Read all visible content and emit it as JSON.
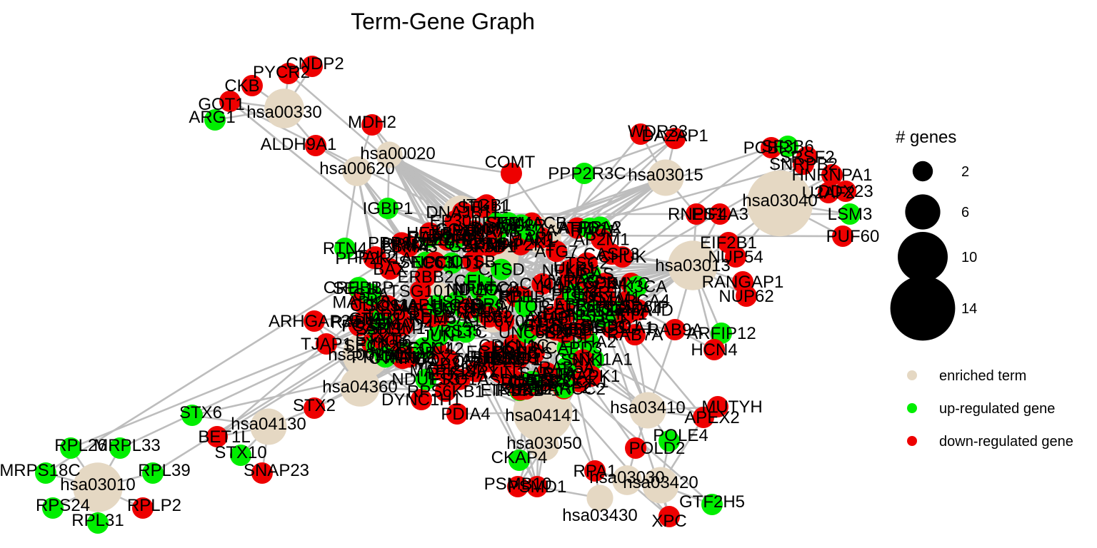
{
  "title": "Term-Gene Graph",
  "colors": {
    "term": "#E5D8C3",
    "up": "#00EE00",
    "down": "#EE0000",
    "edge": "#BDBDBD"
  },
  "legend": {
    "size_title": "# genes",
    "size_values": [
      "2",
      "6",
      "10",
      "14"
    ],
    "categories": [
      {
        "label": "enriched term",
        "type": "term"
      },
      {
        "label": "up-regulated gene",
        "type": "up"
      },
      {
        "label": "down-regulated gene",
        "type": "down"
      }
    ]
  },
  "nodes": [
    {
      "id": "hsa00330",
      "label": "hsa00330",
      "type": "term",
      "genes": 6
    },
    {
      "id": "CNDP2",
      "label": "CNDP2",
      "type": "down"
    },
    {
      "id": "PYCR2",
      "label": "PYCR2",
      "type": "down"
    },
    {
      "id": "CKB",
      "label": "CKB",
      "type": "down"
    },
    {
      "id": "GOT1",
      "label": "GOT1",
      "type": "down"
    },
    {
      "id": "ARG1",
      "label": "ARG1",
      "type": "up"
    },
    {
      "id": "ALDH9A1",
      "label": "ALDH9A1",
      "type": "down"
    },
    {
      "id": "MDH2",
      "label": "MDH2",
      "type": "down"
    },
    {
      "id": "hsa00020",
      "label": "hsa00020",
      "type": "term",
      "genes": 2
    },
    {
      "id": "hsa00620",
      "label": "hsa00620",
      "type": "term",
      "genes": 3
    },
    {
      "id": "COMT",
      "label": "COMT",
      "type": "down"
    },
    {
      "id": "PPP2R3C",
      "label": "PPP2R3C",
      "type": "up"
    },
    {
      "id": "hsa03015",
      "label": "hsa03015",
      "type": "term",
      "genes": 5
    },
    {
      "id": "WDR33",
      "label": "WDR33",
      "type": "down"
    },
    {
      "id": "DAZAP1",
      "label": "DAZAP1",
      "type": "down"
    },
    {
      "id": "RNPS1",
      "label": "RNPS1",
      "type": "down"
    },
    {
      "id": "EIF4A3",
      "label": "EIF4A3",
      "type": "down"
    },
    {
      "id": "hsa03040",
      "label": "hsa03040",
      "type": "term",
      "genes": 14
    },
    {
      "id": "PCBP1",
      "label": "PCBP1",
      "type": "down"
    },
    {
      "id": "SF3B6",
      "label": "SF3B6",
      "type": "up"
    },
    {
      "id": "SRSF2",
      "label": "SRSF2",
      "type": "down"
    },
    {
      "id": "HNRNPA1",
      "label": "HNRNPA1",
      "type": "down"
    },
    {
      "id": "U2AF2",
      "label": "U2AF2",
      "type": "down"
    },
    {
      "id": "SNRPB2",
      "label": "SNRPB2",
      "type": "down"
    },
    {
      "id": "DDX23",
      "label": "DDX23",
      "type": "down"
    },
    {
      "id": "PUF60",
      "label": "PUF60",
      "type": "down"
    },
    {
      "id": "LSM3",
      "label": "LSM3",
      "type": "up"
    },
    {
      "id": "hsa03013",
      "label": "hsa03013",
      "type": "term",
      "genes": 9
    },
    {
      "id": "EIF2B1",
      "label": "EIF2B1",
      "type": "down"
    },
    {
      "id": "NUP54",
      "label": "NUP54",
      "type": "down"
    },
    {
      "id": "RANGAP1",
      "label": "RANGAP1",
      "type": "down"
    },
    {
      "id": "NUP62",
      "label": "NUP62",
      "type": "down"
    },
    {
      "id": "hsa04141",
      "label": "hsa04141",
      "type": "term",
      "genes": 12
    },
    {
      "id": "PDIA4",
      "label": "PDIA4",
      "type": "down"
    },
    {
      "id": "DYNC1H1",
      "label": "DYNC1H1",
      "type": "down"
    },
    {
      "id": "hsa03050",
      "label": "hsa03050",
      "type": "term",
      "genes": 3
    },
    {
      "id": "PSMB10",
      "label": "PSMB10",
      "type": "down"
    },
    {
      "id": "PSMD1",
      "label": "PSMD1",
      "type": "down"
    },
    {
      "id": "CKAP4",
      "label": "CKAP4",
      "type": "up"
    },
    {
      "id": "hsa03410",
      "label": "hsa03410",
      "type": "term",
      "genes": 5
    },
    {
      "id": "MUTYH",
      "label": "MUTYH",
      "type": "down"
    },
    {
      "id": "APEX2",
      "label": "APEX2",
      "type": "down"
    },
    {
      "id": "POLE4",
      "label": "POLE4",
      "type": "up"
    },
    {
      "id": "POLD2",
      "label": "POLD2",
      "type": "down"
    },
    {
      "id": "hsa03420",
      "label": "hsa03420",
      "type": "term",
      "genes": 5
    },
    {
      "id": "hsa03030",
      "label": "hsa03030",
      "type": "term",
      "genes": 3
    },
    {
      "id": "hsa03430",
      "label": "hsa03430",
      "type": "term",
      "genes": 2
    },
    {
      "id": "RPA1",
      "label": "RPA1",
      "type": "down"
    },
    {
      "id": "GTF2H5",
      "label": "GTF2H5",
      "type": "up"
    },
    {
      "id": "XPC",
      "label": "XPC",
      "type": "down"
    },
    {
      "id": "hsa04130",
      "label": "hsa04130",
      "type": "term",
      "genes": 5
    },
    {
      "id": "STX6",
      "label": "STX6",
      "type": "up"
    },
    {
      "id": "BET1L",
      "label": "BET1L",
      "type": "down"
    },
    {
      "id": "STX10",
      "label": "STX10",
      "type": "up"
    },
    {
      "id": "SNAP23",
      "label": "SNAP23",
      "type": "down"
    },
    {
      "id": "STX2",
      "label": "STX2",
      "type": "down"
    },
    {
      "id": "hsa03010",
      "label": "hsa03010",
      "type": "term",
      "genes": 9
    },
    {
      "id": "RPL26",
      "label": "RPL26",
      "type": "up"
    },
    {
      "id": "MRPL33",
      "label": "MRPL33",
      "type": "up"
    },
    {
      "id": "MRPS18C",
      "label": "MRPS18C",
      "type": "up"
    },
    {
      "id": "RPL39",
      "label": "RPL39",
      "type": "up"
    },
    {
      "id": "RPS24",
      "label": "RPS24",
      "type": "up"
    },
    {
      "id": "RPLP2",
      "label": "RPLP2",
      "type": "down"
    },
    {
      "id": "RPL31",
      "label": "RPL31",
      "type": "up"
    },
    {
      "id": "IGBP1",
      "label": "IGBP1",
      "type": "up"
    },
    {
      "id": "RTN4",
      "label": "RTN4",
      "type": "up"
    },
    {
      "id": "ARHGAP35",
      "label": "ARHGAP35",
      "type": "down"
    },
    {
      "id": "TJAP1",
      "label": "TJAP1",
      "type": "down"
    },
    {
      "id": "hsa00190",
      "label": "hsa00190",
      "type": "term",
      "genes": 8
    },
    {
      "id": "hsa04360",
      "label": "hsa04360",
      "type": "term",
      "genes": 6
    },
    {
      "id": "RAB9A",
      "label": "RAB9A",
      "type": "down"
    },
    {
      "id": "ARFIP12",
      "label": "ARFIP12",
      "type": "up"
    },
    {
      "id": "HCN4",
      "label": "HCN4",
      "type": "down"
    },
    {
      "id": "SMARCA4",
      "label": "SMARCA4",
      "type": "down"
    },
    {
      "id": "KDM5A",
      "label": "KDM5A",
      "type": "down"
    },
    {
      "id": "BRD4",
      "label": "BRD4",
      "type": "down"
    },
    {
      "id": "UVRAG",
      "label": "UVRAG",
      "type": "down"
    },
    {
      "id": "PDHB",
      "label": "PDHB",
      "type": "down"
    },
    {
      "id": "ATF6",
      "label": "ATF6",
      "type": "down"
    },
    {
      "id": "UBE2J1",
      "label": "UBE2J1",
      "type": "down"
    },
    {
      "id": "SEC61A1",
      "label": "SEC61A1",
      "type": "down"
    },
    {
      "id": "DDOST",
      "label": "DDOST",
      "type": "down"
    },
    {
      "id": "SEC63",
      "label": "SEC63",
      "type": "up"
    },
    {
      "id": "BCL2",
      "label": "BCL2",
      "type": "down"
    },
    {
      "id": "AP3S1",
      "label": "AP3S1",
      "type": "down"
    },
    {
      "id": "PPP2R1A",
      "label": "PPP2R1A",
      "type": "down"
    },
    {
      "id": "CDKN1C",
      "label": "CDKN1C",
      "type": "down"
    },
    {
      "id": "NCAPD3",
      "label": "NCAPD3",
      "type": "up"
    },
    {
      "id": "PSMA3",
      "label": "PSMA3",
      "type": "down"
    },
    {
      "id": "ATP6V1A",
      "label": "ATP6V1A",
      "type": "up"
    },
    {
      "id": "ATP5PD",
      "label": "ATP5PD",
      "type": "down"
    },
    {
      "id": "NDUFA4",
      "label": "NDUFA4",
      "type": "up"
    },
    {
      "id": "COX7A2",
      "label": "COX7A2",
      "type": "down"
    },
    {
      "id": "UQCRH",
      "label": "UQCRH",
      "type": "down"
    },
    {
      "id": "SDHB",
      "label": "SDHB",
      "type": "down"
    },
    {
      "id": "RPN2",
      "label": "RPN2",
      "type": "down"
    },
    {
      "id": "SEL1L",
      "label": "SEL1L",
      "type": "down"
    },
    {
      "id": "EDEM1",
      "label": "EDEM1",
      "type": "down"
    },
    {
      "id": "HSPA5",
      "label": "HSPA5",
      "type": "up"
    },
    {
      "id": "CANX",
      "label": "CANX",
      "type": "down"
    },
    {
      "id": "SEC24C",
      "label": "SEC24C",
      "type": "up"
    },
    {
      "id": "ERO1A",
      "label": "ERO1A",
      "type": "down"
    },
    {
      "id": "DNAJB11",
      "label": "DNAJB11",
      "type": "down"
    },
    {
      "id": "NPLOC4",
      "label": "NPLOC4",
      "type": "down"
    },
    {
      "id": "UFD1",
      "label": "UFD1",
      "type": "down"
    },
    {
      "id": "TRAM1",
      "label": "TRAM1",
      "type": "up"
    },
    {
      "id": "PREB",
      "label": "PREB",
      "type": "down"
    },
    {
      "id": "MAP2K1",
      "label": "MAP2K1",
      "type": "down"
    },
    {
      "id": "NRAS",
      "label": "NRAS",
      "type": "up"
    },
    {
      "id": "RAC1",
      "label": "RAC1",
      "type": "down"
    },
    {
      "id": "CDC42",
      "label": "CDC42",
      "type": "down"
    },
    {
      "id": "PAK2",
      "label": "PAK2",
      "type": "down"
    },
    {
      "id": "EPHA2",
      "label": "EPHA2",
      "type": "up"
    },
    {
      "id": "SEMA4D",
      "label": "SEMA4D",
      "type": "down"
    },
    {
      "id": "PLXNB1",
      "label": "PLXNB1",
      "type": "down"
    },
    {
      "id": "UNC5B",
      "label": "UNC5B",
      "type": "up"
    },
    {
      "id": "DCC",
      "label": "DCC",
      "type": "down"
    },
    {
      "id": "ROBO1",
      "label": "ROBO1",
      "type": "down"
    },
    {
      "id": "NTN1",
      "label": "NTN1",
      "type": "up"
    },
    {
      "id": "ABLIM1",
      "label": "ABLIM1",
      "type": "down"
    },
    {
      "id": "LIMK1",
      "label": "LIMK1",
      "type": "down"
    },
    {
      "id": "CFL1",
      "label": "CFL1",
      "type": "up"
    },
    {
      "id": "GNAI2",
      "label": "GNAI2",
      "type": "down"
    },
    {
      "id": "PPP3CA",
      "label": "PPP3CA",
      "type": "down"
    },
    {
      "id": "NFATC3",
      "label": "NFATC3",
      "type": "up"
    },
    {
      "id": "ITGB1",
      "label": "ITGB1",
      "type": "down"
    },
    {
      "id": "PTK2",
      "label": "PTK2",
      "type": "down"
    },
    {
      "id": "FYN",
      "label": "FYN",
      "type": "down"
    },
    {
      "id": "SRC",
      "label": "SRC",
      "type": "up"
    },
    {
      "id": "RHOA",
      "label": "RHOA",
      "type": "down"
    },
    {
      "id": "ROCK1",
      "label": "ROCK1",
      "type": "down"
    },
    {
      "id": "MYL12B",
      "label": "MYL12B",
      "type": "up"
    },
    {
      "id": "SSR1",
      "label": "SSR1",
      "type": "down"
    },
    {
      "id": "SSR3",
      "label": "SSR3",
      "type": "up"
    },
    {
      "id": "LMAN1",
      "label": "LMAN1",
      "type": "down"
    },
    {
      "id": "SAR1A",
      "label": "SAR1A",
      "type": "down"
    },
    {
      "id": "YKT6",
      "label": "YKT6",
      "type": "down"
    },
    {
      "id": "SEC22B",
      "label": "SEC22B",
      "type": "up"
    },
    {
      "id": "GOSR1",
      "label": "GOSR1",
      "type": "down"
    },
    {
      "id": "VTI1B",
      "label": "VTI1B",
      "type": "down"
    },
    {
      "id": "USE1",
      "label": "USE1",
      "type": "up"
    },
    {
      "id": "BNIP1",
      "label": "BNIP1",
      "type": "down"
    },
    {
      "id": "STX18",
      "label": "STX18",
      "type": "down"
    },
    {
      "id": "NDUFB9",
      "label": "NDUFB9",
      "type": "down"
    },
    {
      "id": "NDUFS3",
      "label": "NDUFS3",
      "type": "up"
    },
    {
      "id": "COX6C",
      "label": "COX6C",
      "type": "down"
    },
    {
      "id": "ATP6V0E1",
      "label": "ATP6V0E1",
      "type": "down"
    },
    {
      "id": "PPA2",
      "label": "PPA2",
      "type": "up"
    },
    {
      "id": "CYC1",
      "label": "CYC1",
      "type": "down"
    },
    {
      "id": "UQCRC2",
      "label": "UQCRC2",
      "type": "down"
    },
    {
      "id": "PRKACB",
      "label": "PRKACB",
      "type": "down"
    },
    {
      "id": "KRAS",
      "label": "KRAS",
      "type": "up"
    },
    {
      "id": "TGFBR1",
      "label": "TGFBR1",
      "type": "down"
    },
    {
      "id": "SMAD4",
      "label": "SMAD4",
      "type": "down"
    },
    {
      "id": "CREBBP",
      "label": "CREBBP",
      "type": "up"
    },
    {
      "id": "EP300",
      "label": "EP300",
      "type": "down"
    },
    {
      "id": "SP1",
      "label": "SP1",
      "type": "down"
    },
    {
      "id": "HDAC2",
      "label": "HDAC2",
      "type": "down"
    },
    {
      "id": "ARID1A",
      "label": "ARID1A",
      "type": "up"
    },
    {
      "id": "SMARCC2",
      "label": "SMARCC2",
      "type": "down"
    },
    {
      "id": "SUZ12",
      "label": "SUZ12",
      "type": "down"
    },
    {
      "id": "EZH2",
      "label": "EZH2",
      "type": "up"
    },
    {
      "id": "CTNNB1",
      "label": "CTNNB1",
      "type": "down"
    },
    {
      "id": "GSK3B",
      "label": "GSK3B",
      "type": "down"
    },
    {
      "id": "CSNK1A1",
      "label": "CSNK1A1",
      "type": "up"
    },
    {
      "id": "AXIN1",
      "label": "AXIN1",
      "type": "down"
    },
    {
      "id": "APC",
      "label": "APC",
      "type": "down"
    },
    {
      "id": "MYC",
      "label": "MYC",
      "type": "down"
    },
    {
      "id": "CCND1",
      "label": "CCND1",
      "type": "up"
    },
    {
      "id": "CDK4",
      "label": "CDK4",
      "type": "down"
    },
    {
      "id": "RB1",
      "label": "RB1",
      "type": "down"
    },
    {
      "id": "E2F1",
      "label": "E2F1",
      "type": "down"
    },
    {
      "id": "TP53",
      "label": "TP53",
      "type": "up"
    },
    {
      "id": "MDM2",
      "label": "MDM2",
      "type": "down"
    },
    {
      "id": "CDKN1A",
      "label": "CDKN1A",
      "type": "down"
    },
    {
      "id": "GADD45A",
      "label": "GADD45A",
      "type": "up"
    },
    {
      "id": "BAX",
      "label": "BAX",
      "type": "down"
    },
    {
      "id": "CASP3",
      "label": "CASP3",
      "type": "down"
    },
    {
      "id": "CYCS",
      "label": "CYCS",
      "type": "up"
    },
    {
      "id": "APAF1",
      "label": "APAF1",
      "type": "down"
    },
    {
      "id": "XIAP",
      "label": "XIAP",
      "type": "down"
    },
    {
      "id": "BIRC2",
      "label": "BIRC2",
      "type": "down"
    },
    {
      "id": "TRAF2",
      "label": "TRAF2",
      "type": "up"
    },
    {
      "id": "NFKB1",
      "label": "NFKB1",
      "type": "down"
    },
    {
      "id": "RELA",
      "label": "RELA",
      "type": "down"
    },
    {
      "id": "IKBKB",
      "label": "IKBKB",
      "type": "up"
    },
    {
      "id": "CHUK",
      "label": "CHUK",
      "type": "down"
    },
    {
      "id": "MAP3K7",
      "label": "MAP3K7",
      "type": "down"
    },
    {
      "id": "TAB1",
      "label": "TAB1",
      "type": "up"
    },
    {
      "id": "MAPK14",
      "label": "MAPK14",
      "type": "down"
    },
    {
      "id": "MAPK8",
      "label": "MAPK8",
      "type": "down"
    },
    {
      "id": "JUN",
      "label": "JUN",
      "type": "up"
    },
    {
      "id": "FOS",
      "label": "FOS",
      "type": "down"
    },
    {
      "id": "ELK1",
      "label": "ELK1",
      "type": "down"
    },
    {
      "id": "MAPK1",
      "label": "MAPK1",
      "type": "down"
    },
    {
      "id": "RAF1",
      "label": "RAF1",
      "type": "up"
    },
    {
      "id": "SOS1",
      "label": "SOS1",
      "type": "down"
    },
    {
      "id": "GRB2",
      "label": "GRB2",
      "type": "down"
    },
    {
      "id": "SHC1",
      "label": "SHC1",
      "type": "up"
    },
    {
      "id": "EGFR",
      "label": "EGFR",
      "type": "down"
    },
    {
      "id": "ERBB2",
      "label": "ERBB2",
      "type": "down"
    },
    {
      "id": "PIK3CA",
      "label": "PIK3CA",
      "type": "up"
    },
    {
      "id": "PIK3R1",
      "label": "PIK3R1",
      "type": "down"
    },
    {
      "id": "AKT1",
      "label": "AKT1",
      "type": "down"
    },
    {
      "id": "MTOR",
      "label": "MTOR",
      "type": "up"
    },
    {
      "id": "RPS6KB1",
      "label": "RPS6KB1",
      "type": "down"
    },
    {
      "id": "EIF4EBP1",
      "label": "EIF4EBP1",
      "type": "down"
    },
    {
      "id": "PTEN",
      "label": "PTEN",
      "type": "up"
    },
    {
      "id": "TSC2",
      "label": "TSC2",
      "type": "down"
    },
    {
      "id": "RHEB",
      "label": "RHEB",
      "type": "down"
    },
    {
      "id": "PRKAA1",
      "label": "PRKAA1",
      "type": "up"
    },
    {
      "id": "STK11",
      "label": "STK11",
      "type": "down"
    },
    {
      "id": "ULK1",
      "label": "ULK1",
      "type": "down"
    },
    {
      "id": "BECN1",
      "label": "BECN1",
      "type": "up"
    },
    {
      "id": "ATG5",
      "label": "ATG5",
      "type": "down"
    },
    {
      "id": "ATG7",
      "label": "ATG7",
      "type": "down"
    },
    {
      "id": "MAP1LC3B",
      "label": "MAP1LC3B",
      "type": "up"
    },
    {
      "id": "SQSTM1",
      "label": "SQSTM1",
      "type": "down"
    },
    {
      "id": "LAMP1",
      "label": "LAMP1",
      "type": "down"
    },
    {
      "id": "CTSD",
      "label": "CTSD",
      "type": "up"
    },
    {
      "id": "CTSB",
      "label": "CTSB",
      "type": "down"
    },
    {
      "id": "HEXB",
      "label": "HEXB",
      "type": "down"
    },
    {
      "id": "GBA",
      "label": "GBA",
      "type": "up"
    },
    {
      "id": "NPC1",
      "label": "NPC1",
      "type": "down"
    },
    {
      "id": "M6PR",
      "label": "M6PR",
      "type": "down"
    },
    {
      "id": "IGF2R",
      "label": "IGF2R",
      "type": "up"
    },
    {
      "id": "AP1B1",
      "label": "AP1B1",
      "type": "down"
    },
    {
      "id": "AP2M1",
      "label": "AP2M1",
      "type": "down"
    },
    {
      "id": "CLTC",
      "label": "CLTC",
      "type": "up"
    },
    {
      "id": "DNM2",
      "label": "DNM2",
      "type": "down"
    },
    {
      "id": "EEA1",
      "label": "EEA1",
      "type": "down"
    },
    {
      "id": "RAB5A",
      "label": "RAB5A",
      "type": "up"
    },
    {
      "id": "RAB7A",
      "label": "RAB7A",
      "type": "down"
    },
    {
      "id": "RAB11A",
      "label": "RAB11A",
      "type": "down"
    },
    {
      "id": "VPS35",
      "label": "VPS35",
      "type": "up"
    },
    {
      "id": "SNX1",
      "label": "SNX1",
      "type": "down"
    },
    {
      "id": "CHMP2B",
      "label": "CHMP2B",
      "type": "down"
    },
    {
      "id": "VPS4A",
      "label": "VPS4A",
      "type": "up"
    },
    {
      "id": "TSG101",
      "label": "TSG101",
      "type": "down"
    },
    {
      "id": "HGS",
      "label": "HGS",
      "type": "down"
    },
    {
      "id": "STAM",
      "label": "STAM",
      "type": "up"
    },
    {
      "id": "PDCD6IP",
      "label": "PDCD6IP",
      "type": "down"
    }
  ]
}
